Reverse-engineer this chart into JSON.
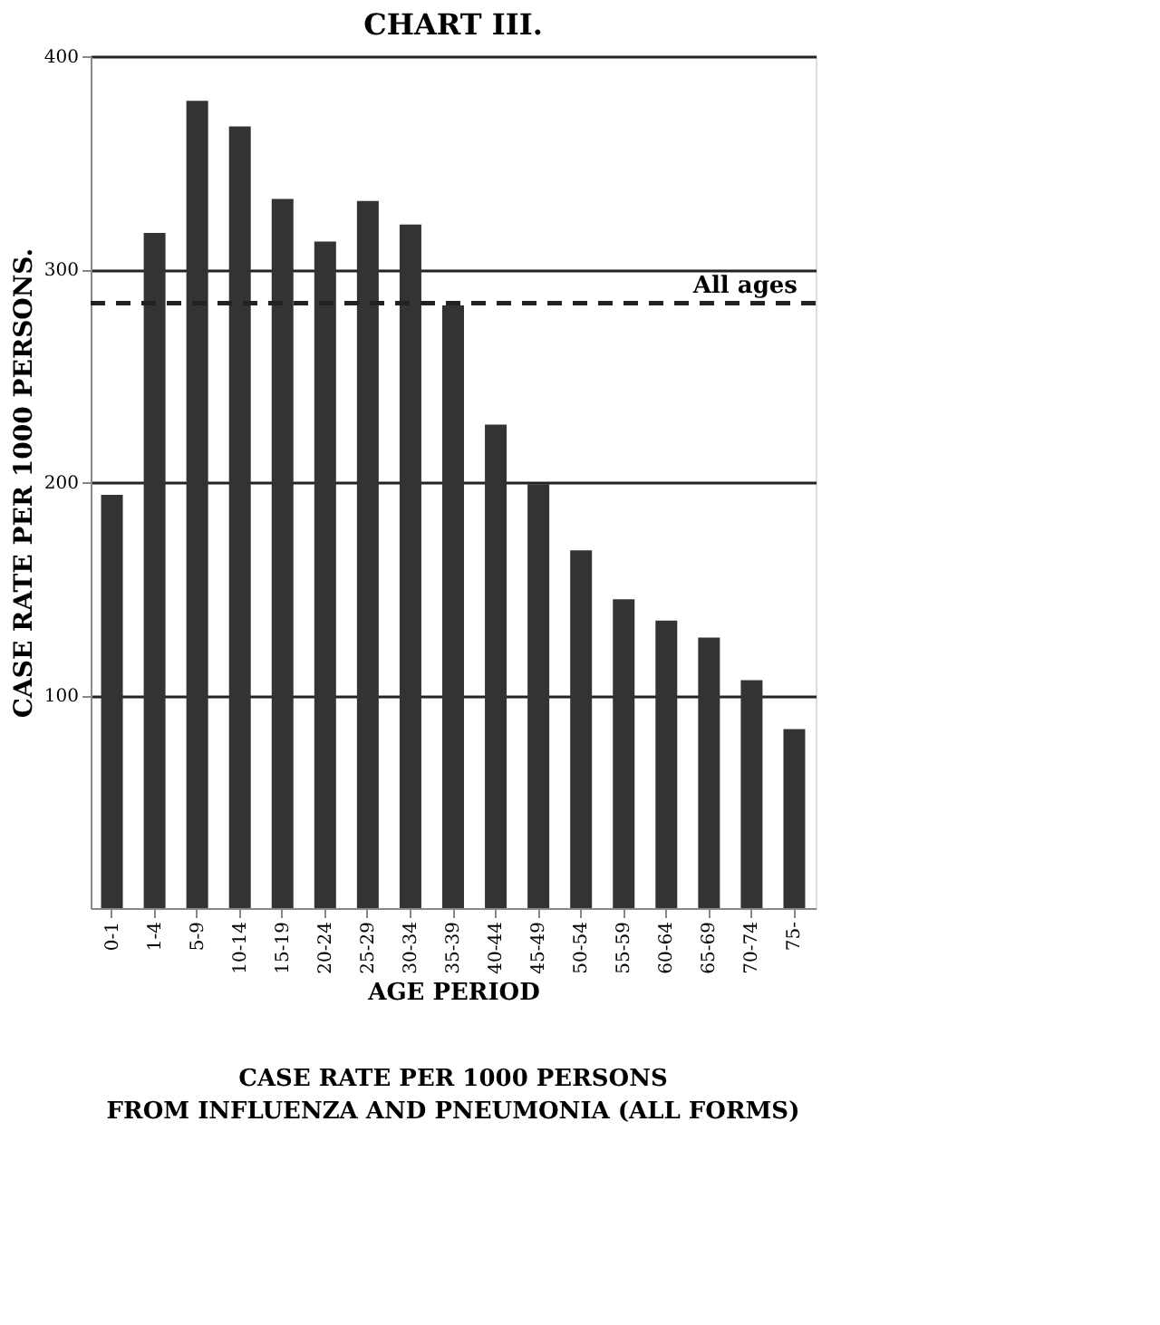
{
  "chart_data": {
    "type": "bar",
    "title": "CHART III.",
    "ylabel": "CASE RATE PER 1000 PERSONS.",
    "xlabel": "AGE PERIOD",
    "annotations": [
      "CASE RATE PER 1000 PERSONS FROM INFLUENZA AND PNEUMONIA (ALL FORMS)"
    ],
    "categories": [
      "0-1",
      "1-4",
      "5-9",
      "10-14",
      "15-19",
      "20-24",
      "25-29",
      "30-34",
      "35-39",
      "40-44",
      "45-49",
      "50-54",
      "55-59",
      "60-64",
      "65-69",
      "70-74",
      "75-"
    ],
    "series": [
      {
        "color": "#333333",
        "values": [
          194,
          317,
          379,
          367,
          333,
          313,
          332,
          321,
          283,
          227,
          199,
          168,
          145,
          135,
          127,
          107,
          84
        ]
      }
    ],
    "ylim": [
      0,
      400
    ],
    "yticks": [
      100,
      200,
      300,
      400
    ],
    "grid": "y",
    "ref_lines": [
      {
        "axis": "y",
        "value": 284,
        "label": "All ages",
        "line_style": "dashed"
      }
    ]
  }
}
